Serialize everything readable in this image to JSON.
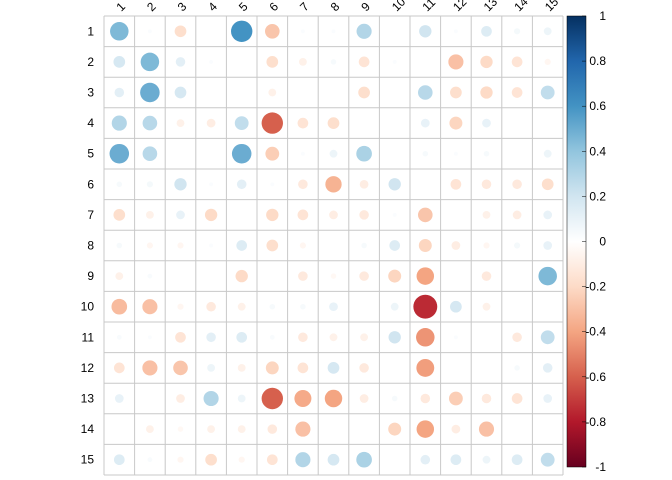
{
  "chart_data": {
    "type": "heatmap",
    "style": "circle",
    "title": "",
    "xlabel": "",
    "ylabel": "",
    "row_labels": [
      "1",
      "2",
      "3",
      "4",
      "5",
      "6",
      "7",
      "8",
      "9",
      "10",
      "11",
      "12",
      "13",
      "14",
      "15"
    ],
    "col_labels": [
      "1",
      "2",
      "3",
      "4",
      "5",
      "6",
      "7",
      "8",
      "9",
      "10",
      "11",
      "12",
      "13",
      "14",
      "15"
    ],
    "value_range": [
      -1,
      1
    ],
    "colorbar_ticks": [
      "1",
      "0.8",
      "0.6",
      "0.4",
      "0.2",
      "0",
      "-0.2",
      "-0.4",
      "-0.6",
      "-0.8",
      "-1"
    ],
    "color_scale": {
      "negative_end": "#67001f",
      "neutral": "#ffffff",
      "positive_end": "#053061"
    },
    "grid": true,
    "legend": "right",
    "values": [
      [
        0.45,
        0.02,
        -0.18,
        0,
        0.6,
        -0.28,
        0.02,
        0.02,
        0.3,
        0,
        0.2,
        0.02,
        0.15,
        0.05,
        0.08
      ],
      [
        0.18,
        0.45,
        0.12,
        0.02,
        0,
        -0.18,
        -0.08,
        0.04,
        -0.15,
        0.02,
        0,
        -0.3,
        -0.2,
        -0.15,
        -0.05
      ],
      [
        0.12,
        0.5,
        0.18,
        0,
        0,
        -0.08,
        0,
        0,
        -0.18,
        0,
        0.28,
        -0.18,
        -0.2,
        -0.15,
        0.25
      ],
      [
        0.3,
        0.28,
        -0.08,
        -0.1,
        0.25,
        -0.6,
        -0.15,
        -0.18,
        0,
        0,
        0.1,
        -0.22,
        0.1,
        0,
        0
      ],
      [
        0.5,
        0.28,
        0,
        0,
        0.5,
        -0.25,
        0.02,
        0.08,
        0.32,
        0,
        0.04,
        0.02,
        0.04,
        0,
        0.08
      ],
      [
        0.04,
        0.05,
        0.2,
        0.02,
        0.12,
        0.02,
        -0.12,
        -0.35,
        -0.1,
        0.2,
        0,
        -0.15,
        -0.12,
        -0.12,
        -0.18
      ],
      [
        -0.18,
        -0.08,
        0.1,
        -0.2,
        0,
        -0.2,
        -0.15,
        -0.1,
        -0.12,
        0.02,
        -0.28,
        0,
        -0.08,
        -0.1,
        0.1
      ],
      [
        0.04,
        -0.05,
        -0.05,
        0.02,
        0.15,
        -0.18,
        -0.05,
        0,
        0.04,
        0.15,
        -0.22,
        -0.1,
        -0.05,
        0.05,
        0.1
      ],
      [
        -0.08,
        0.03,
        0,
        0,
        -0.2,
        0,
        -0.12,
        -0.04,
        -0.12,
        -0.22,
        -0.4,
        0,
        -0.12,
        0,
        0.45
      ],
      [
        -0.32,
        -0.3,
        -0.05,
        -0.12,
        -0.08,
        0.04,
        0.04,
        0.1,
        0,
        0.08,
        -0.75,
        0.18,
        -0.08,
        0,
        0
      ],
      [
        0.03,
        0.02,
        -0.15,
        0.12,
        0.15,
        0.03,
        -0.12,
        -0.08,
        -0.08,
        0.2,
        -0.45,
        0.02,
        0,
        -0.12,
        0.25
      ],
      [
        -0.15,
        -0.3,
        -0.28,
        0.08,
        -0.08,
        -0.22,
        -0.15,
        0.18,
        -0.12,
        0,
        -0.42,
        0,
        0,
        0.04,
        0.12
      ],
      [
        0.1,
        0,
        -0.1,
        0.3,
        0.08,
        -0.6,
        -0.38,
        -0.4,
        -0.1,
        0.04,
        -0.12,
        -0.25,
        -0.12,
        -0.15,
        0.1
      ],
      [
        0,
        -0.08,
        -0.04,
        -0.08,
        -0.08,
        -0.12,
        -0.3,
        0,
        0,
        -0.22,
        -0.4,
        -0.1,
        -0.3,
        0,
        0
      ],
      [
        0.15,
        0.03,
        -0.05,
        -0.18,
        -0.05,
        -0.15,
        0.3,
        0.18,
        0.32,
        0,
        0.12,
        0.15,
        0.08,
        0.15,
        0.25
      ]
    ]
  }
}
